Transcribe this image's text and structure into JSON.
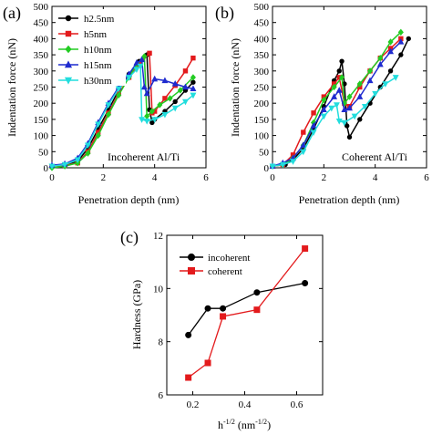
{
  "chart_data": [
    {
      "panel": "(a)",
      "type": "line",
      "xlabel": "Penetration depth (nm)",
      "ylabel": "Indentation force (nN)",
      "xlim": [
        0,
        6
      ],
      "ylim": [
        0,
        500
      ],
      "xticks": [
        "0",
        "2",
        "4",
        "6"
      ],
      "yticks": [
        "0",
        "50",
        "100",
        "150",
        "200",
        "250",
        "300",
        "350",
        "400",
        "450",
        "500"
      ],
      "annotation": "Incoherent Al/Ti",
      "legend_position": "top-left",
      "series": [
        {
          "name": "h2.5nm",
          "color": "#000000",
          "marker": "circle",
          "x": [
            0.0,
            0.5,
            1.0,
            1.4,
            1.8,
            2.2,
            2.6,
            3.0,
            3.4,
            3.7,
            3.8,
            3.9,
            4.0,
            4.4,
            4.8,
            5.2,
            5.5
          ],
          "y": [
            5,
            10,
            20,
            60,
            120,
            180,
            240,
            290,
            330,
            350,
            180,
            140,
            150,
            175,
            205,
            240,
            265
          ]
        },
        {
          "name": "h5nm",
          "color": "#e31a1c",
          "marker": "square",
          "x": [
            0.0,
            0.5,
            1.0,
            1.4,
            1.8,
            2.2,
            2.6,
            3.0,
            3.4,
            3.8,
            3.9,
            4.0,
            4.4,
            4.8,
            5.2,
            5.5
          ],
          "y": [
            5,
            8,
            15,
            50,
            110,
            170,
            230,
            280,
            320,
            355,
            170,
            175,
            215,
            255,
            300,
            340
          ]
        },
        {
          "name": "h10nm",
          "color": "#22cc22",
          "marker": "diamond",
          "x": [
            0.0,
            0.5,
            1.0,
            1.4,
            1.8,
            2.2,
            2.6,
            3.0,
            3.3,
            3.6,
            3.7,
            3.9,
            4.2,
            4.6,
            5.0,
            5.5
          ],
          "y": [
            0,
            5,
            15,
            45,
            100,
            165,
            225,
            280,
            320,
            345,
            160,
            175,
            195,
            215,
            240,
            280
          ]
        },
        {
          "name": "h15nm",
          "color": "#1f2bcf",
          "marker": "triangle",
          "x": [
            0.0,
            0.5,
            1.0,
            1.4,
            1.8,
            2.2,
            2.6,
            3.0,
            3.3,
            3.5,
            3.6,
            3.7,
            4.0,
            4.4,
            4.8,
            5.2,
            5.5
          ],
          "y": [
            8,
            12,
            30,
            75,
            140,
            200,
            250,
            290,
            325,
            335,
            250,
            230,
            275,
            270,
            260,
            250,
            245
          ]
        },
        {
          "name": "h30nm",
          "color": "#22dddd",
          "marker": "triangle-down",
          "x": [
            0.0,
            0.5,
            1.0,
            1.4,
            1.8,
            2.2,
            2.6,
            3.0,
            3.3,
            3.45,
            3.5,
            3.7,
            4.0,
            4.4,
            4.8,
            5.2,
            5.5
          ],
          "y": [
            5,
            10,
            25,
            70,
            135,
            195,
            245,
            280,
            305,
            315,
            150,
            145,
            150,
            165,
            185,
            205,
            225
          ]
        }
      ]
    },
    {
      "panel": "(b)",
      "type": "line",
      "xlabel": "Penetration depth (nm)",
      "ylabel": "Indentation force (nN)",
      "xlim": [
        0,
        6
      ],
      "ylim": [
        0,
        500
      ],
      "xticks": [
        "0",
        "2",
        "4",
        "6"
      ],
      "yticks": [
        "0",
        "50",
        "100",
        "150",
        "200",
        "250",
        "300",
        "350",
        "400",
        "450",
        "500"
      ],
      "annotation": "Coherent Al/Ti",
      "series": [
        {
          "name": "h2.5nm",
          "color": "#000000",
          "marker": "circle",
          "x": [
            0.0,
            0.5,
            0.8,
            1.2,
            1.6,
            2.0,
            2.4,
            2.6,
            2.7,
            2.8,
            2.9,
            3.0,
            3.4,
            3.8,
            4.2,
            4.6,
            5.0,
            5.3
          ],
          "y": [
            5,
            10,
            25,
            60,
            120,
            190,
            270,
            300,
            330,
            260,
            130,
            95,
            150,
            200,
            250,
            300,
            350,
            400
          ]
        },
        {
          "name": "h5nm",
          "color": "#e31a1c",
          "marker": "square",
          "x": [
            0.0,
            0.4,
            0.8,
            1.2,
            1.6,
            2.0,
            2.4,
            2.6,
            2.8,
            3.0,
            3.4,
            3.8,
            4.2,
            4.6,
            5.0
          ],
          "y": [
            5,
            10,
            40,
            110,
            170,
            220,
            260,
            280,
            200,
            190,
            250,
            300,
            340,
            370,
            400
          ]
        },
        {
          "name": "h10nm",
          "color": "#22cc22",
          "marker": "diamond",
          "x": [
            0.0,
            0.4,
            0.8,
            1.2,
            1.6,
            2.0,
            2.4,
            2.7,
            2.8,
            3.0,
            3.4,
            3.8,
            4.2,
            4.6,
            5.0
          ],
          "y": [
            5,
            10,
            30,
            70,
            140,
            210,
            250,
            280,
            200,
            220,
            260,
            300,
            340,
            390,
            420
          ]
        },
        {
          "name": "h15nm",
          "color": "#1f2bcf",
          "marker": "triangle",
          "x": [
            0.0,
            0.4,
            0.8,
            1.2,
            1.6,
            2.0,
            2.4,
            2.6,
            2.8,
            3.0,
            3.4,
            3.8,
            4.2,
            4.6,
            5.0
          ],
          "y": [
            5,
            15,
            30,
            70,
            130,
            180,
            220,
            240,
            180,
            185,
            220,
            270,
            320,
            360,
            390
          ]
        },
        {
          "name": "h30nm",
          "color": "#22dddd",
          "marker": "triangle-down",
          "x": [
            0.0,
            0.4,
            0.8,
            1.2,
            1.6,
            2.0,
            2.3,
            2.5,
            2.6,
            2.8,
            3.2,
            3.6,
            4.0,
            4.4,
            4.8
          ],
          "y": [
            5,
            10,
            20,
            50,
            110,
            160,
            185,
            195,
            145,
            140,
            160,
            190,
            230,
            260,
            280
          ]
        }
      ]
    },
    {
      "panel": "(c)",
      "type": "line",
      "xlabel": "h",
      "xlabel_sup1": "-1/2",
      "xlabel_mid": " (nm",
      "xlabel_sup2": "-1/2",
      "xlabel_end": ")",
      "ylabel": "Hardness (GPa)",
      "xlim": [
        0.1,
        0.7
      ],
      "ylim": [
        6,
        12
      ],
      "xticks": [
        "0.2",
        "0.4",
        "0.6"
      ],
      "xtick_values": [
        0.2,
        0.4,
        0.6
      ],
      "yticks": [
        "6",
        "8",
        "10",
        "12"
      ],
      "ytick_values": [
        6,
        8,
        10,
        12
      ],
      "legend_position": "top-left",
      "series": [
        {
          "name": "incoherent",
          "color": "#000000",
          "marker": "circle",
          "x": [
            0.183,
            0.258,
            0.316,
            0.447,
            0.632
          ],
          "y": [
            8.25,
            9.25,
            9.25,
            9.85,
            10.2
          ]
        },
        {
          "name": "coherent",
          "color": "#e31a1c",
          "marker": "square",
          "x": [
            0.183,
            0.258,
            0.316,
            0.447,
            0.632
          ],
          "y": [
            6.65,
            7.2,
            8.95,
            9.2,
            11.5
          ]
        }
      ]
    }
  ]
}
